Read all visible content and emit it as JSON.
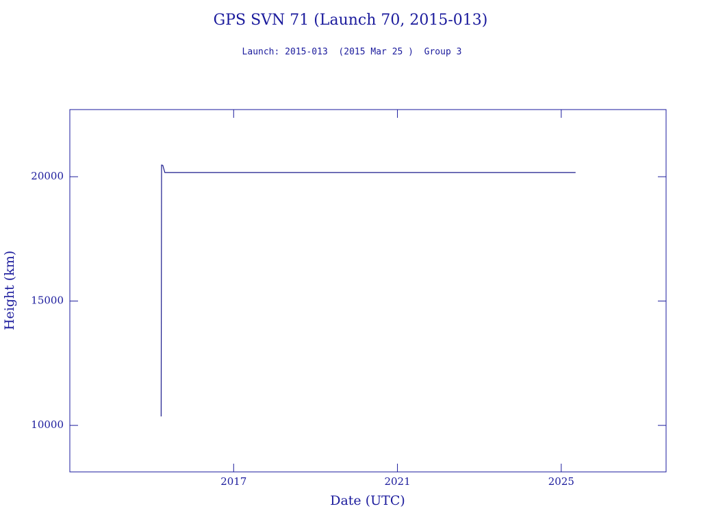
{
  "chart_data": {
    "type": "line",
    "title": "GPS SVN 71 (Launch 70, 2015-013)",
    "subtitle": "Launch: 2015-013  (2015 Mar 25 )  Group 3",
    "x_label": "Date (UTC)",
    "y_label": "Height (km)",
    "series": [
      {
        "name": "SVN 71",
        "color": "#1a1a8c",
        "x": [
          2015.23,
          2015.24,
          2015.27,
          2015.32,
          2025.35
        ],
        "values": [
          10360,
          20470,
          20460,
          20170,
          20170
        ]
      }
    ],
    "xlim": [
      2013,
      2027.56
    ],
    "xticks": [
      2017,
      2021,
      2025
    ],
    "ylim": [
      8130,
      22700
    ],
    "yticks": [
      10000,
      15000,
      20000
    ],
    "color": "#1a1a9c"
  }
}
